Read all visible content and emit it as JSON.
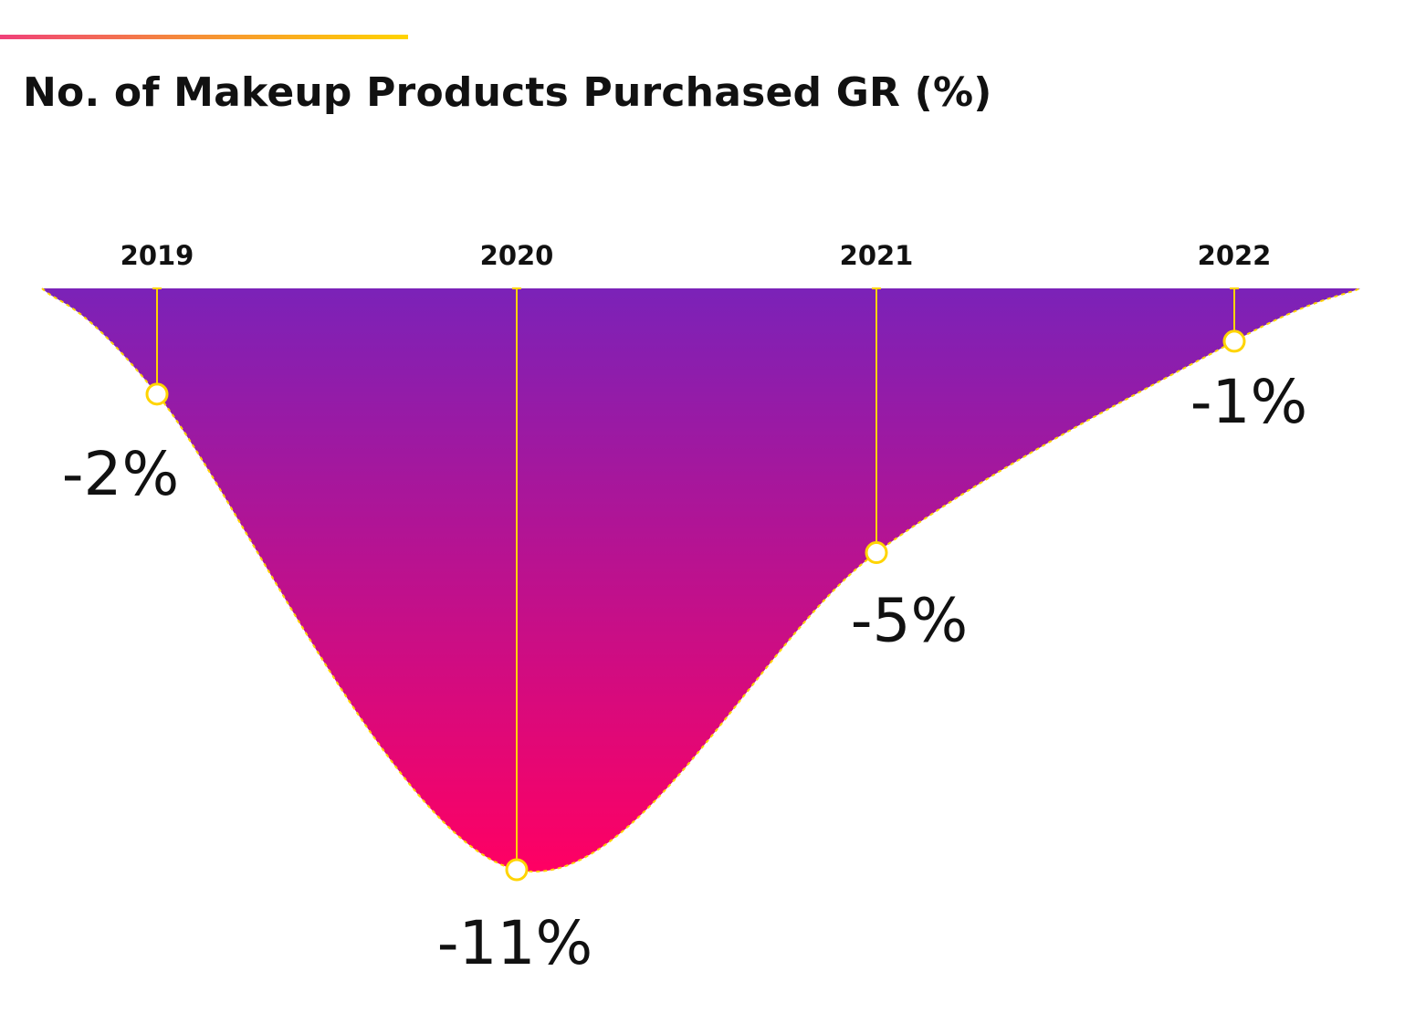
{
  "title": "No. of Makeup Products Purchased GR (%)",
  "colors": {
    "accent_start": "#f0407a",
    "accent_end": "#ffd400",
    "area_top": "#7b22b8",
    "area_bottom": "#ff0063",
    "marker": "#ffd400"
  },
  "chart_data": {
    "type": "area",
    "title": "No. of Makeup Products Purchased GR (%)",
    "categories": [
      "2019",
      "2020",
      "2021",
      "2022"
    ],
    "values": [
      -2,
      -11,
      -5,
      -1
    ],
    "data_labels": [
      "-2%",
      "-11%",
      "-5%",
      "-1%"
    ],
    "ylim": [
      -11,
      0
    ],
    "grid": false,
    "legend": "none"
  }
}
